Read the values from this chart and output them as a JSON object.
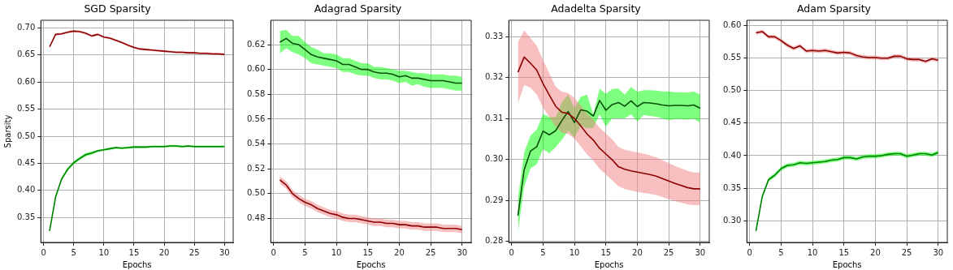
{
  "chart_data": [
    {
      "type": "line",
      "title": "SGD Sparsity",
      "xlabel": "Epochs",
      "ylabel": "Sparsity",
      "x": [
        1,
        2,
        3,
        4,
        5,
        6,
        7,
        8,
        9,
        10,
        11,
        12,
        13,
        14,
        15,
        16,
        17,
        18,
        19,
        20,
        21,
        22,
        23,
        24,
        25,
        26,
        27,
        28,
        29,
        30
      ],
      "xlim": [
        -0.45,
        31.45
      ],
      "xticks": [
        0,
        5,
        10,
        15,
        20,
        25,
        30
      ],
      "ylim": [
        0.304,
        0.714
      ],
      "yticks": [
        {
          "value": 0.35,
          "label": "0.35"
        },
        {
          "value": 0.4,
          "label": "0.40"
        },
        {
          "value": 0.45,
          "label": "0.45"
        },
        {
          "value": 0.5,
          "label": "0.50"
        },
        {
          "value": 0.55,
          "label": "0.55"
        },
        {
          "value": 0.6,
          "label": "0.60"
        },
        {
          "value": 0.65,
          "label": "0.65"
        },
        {
          "value": 0.7,
          "label": "0.70"
        }
      ],
      "grid": true,
      "series": [
        {
          "color": "#8b0000",
          "values": [
            0.665,
            0.688,
            0.689,
            0.692,
            0.694,
            0.693,
            0.69,
            0.685,
            0.688,
            0.683,
            0.681,
            0.677,
            0.673,
            0.668,
            0.664,
            0.661,
            0.66,
            0.659,
            0.658,
            0.657,
            0.656,
            0.655,
            0.655,
            0.654,
            0.654,
            0.653,
            0.653,
            0.652,
            0.652,
            0.651
          ],
          "lower": [
            0.663,
            0.686,
            0.687,
            0.69,
            0.692,
            0.691,
            0.688,
            0.683,
            0.686,
            0.681,
            0.679,
            0.675,
            0.671,
            0.666,
            0.662,
            0.659,
            0.658,
            0.657,
            0.656,
            0.655,
            0.654,
            0.653,
            0.653,
            0.652,
            0.652,
            0.651,
            0.651,
            0.65,
            0.65,
            0.649
          ],
          "upper": [
            0.667,
            0.69,
            0.691,
            0.694,
            0.696,
            0.695,
            0.692,
            0.687,
            0.69,
            0.685,
            0.683,
            0.679,
            0.675,
            0.67,
            0.666,
            0.663,
            0.662,
            0.661,
            0.66,
            0.659,
            0.658,
            0.657,
            0.657,
            0.656,
            0.656,
            0.655,
            0.655,
            0.654,
            0.654,
            0.653
          ]
        },
        {
          "color": "#008000",
          "values": [
            0.325,
            0.388,
            0.421,
            0.439,
            0.451,
            0.459,
            0.466,
            0.469,
            0.473,
            0.475,
            0.477,
            0.479,
            0.478,
            0.479,
            0.48,
            0.48,
            0.48,
            0.481,
            0.481,
            0.481,
            0.482,
            0.482,
            0.481,
            0.482,
            0.481,
            0.481,
            0.481,
            0.481,
            0.481,
            0.481
          ],
          "lower": [
            0.322,
            0.385,
            0.418,
            0.436,
            0.448,
            0.456,
            0.463,
            0.466,
            0.471,
            0.473,
            0.475,
            0.477,
            0.476,
            0.477,
            0.478,
            0.478,
            0.478,
            0.479,
            0.479,
            0.479,
            0.48,
            0.48,
            0.479,
            0.48,
            0.479,
            0.479,
            0.479,
            0.479,
            0.479,
            0.479
          ],
          "upper": [
            0.328,
            0.391,
            0.424,
            0.442,
            0.454,
            0.462,
            0.469,
            0.472,
            0.475,
            0.477,
            0.479,
            0.481,
            0.48,
            0.481,
            0.482,
            0.482,
            0.482,
            0.483,
            0.483,
            0.483,
            0.484,
            0.484,
            0.483,
            0.484,
            0.483,
            0.483,
            0.483,
            0.483,
            0.483,
            0.483
          ]
        }
      ]
    },
    {
      "type": "line",
      "title": "Adagrad Sparsity",
      "xlabel": "Epochs",
      "x": [
        1,
        2,
        3,
        4,
        5,
        6,
        7,
        8,
        9,
        10,
        11,
        12,
        13,
        14,
        15,
        16,
        17,
        18,
        19,
        20,
        21,
        22,
        23,
        24,
        25,
        26,
        27,
        28,
        29,
        30
      ],
      "xlim": [
        -0.45,
        31.45
      ],
      "xticks": [
        0,
        5,
        10,
        15,
        20,
        25,
        30
      ],
      "ylim": [
        0.4607,
        0.6396
      ],
      "yticks": [
        {
          "value": 0.48,
          "label": "0.48"
        },
        {
          "value": 0.5,
          "label": "0.50"
        },
        {
          "value": 0.52,
          "label": "0.52"
        },
        {
          "value": 0.54,
          "label": "0.54"
        },
        {
          "value": 0.56,
          "label": "0.56"
        },
        {
          "value": 0.58,
          "label": "0.58"
        },
        {
          "value": 0.6,
          "label": "0.60"
        },
        {
          "value": 0.62,
          "label": "0.62"
        }
      ],
      "grid": true,
      "series": [
        {
          "color": "#8b0000",
          "values": [
            0.511,
            0.507,
            0.5,
            0.496,
            0.493,
            0.491,
            0.488,
            0.486,
            0.484,
            0.483,
            0.481,
            0.48,
            0.48,
            0.479,
            0.478,
            0.477,
            0.477,
            0.476,
            0.476,
            0.475,
            0.475,
            0.474,
            0.474,
            0.473,
            0.473,
            0.473,
            0.472,
            0.472,
            0.472,
            0.471
          ],
          "lower": [
            0.508,
            0.504,
            0.497,
            0.493,
            0.49,
            0.488,
            0.485,
            0.483,
            0.481,
            0.48,
            0.478,
            0.477,
            0.477,
            0.476,
            0.475,
            0.474,
            0.474,
            0.473,
            0.473,
            0.472,
            0.472,
            0.471,
            0.471,
            0.47,
            0.47,
            0.47,
            0.469,
            0.469,
            0.469,
            0.468
          ],
          "upper": [
            0.514,
            0.51,
            0.503,
            0.499,
            0.496,
            0.494,
            0.491,
            0.489,
            0.487,
            0.486,
            0.484,
            0.483,
            0.483,
            0.482,
            0.481,
            0.48,
            0.48,
            0.479,
            0.479,
            0.478,
            0.478,
            0.477,
            0.477,
            0.476,
            0.476,
            0.476,
            0.475,
            0.475,
            0.475,
            0.474
          ]
        },
        {
          "color": "#0a500a",
          "values": [
            0.622,
            0.625,
            0.621,
            0.62,
            0.616,
            0.612,
            0.61,
            0.609,
            0.608,
            0.607,
            0.604,
            0.604,
            0.602,
            0.6,
            0.6,
            0.598,
            0.597,
            0.597,
            0.596,
            0.594,
            0.595,
            0.593,
            0.593,
            0.592,
            0.591,
            0.591,
            0.591,
            0.59,
            0.589,
            0.589
          ],
          "lower": [
            0.613,
            0.617,
            0.614,
            0.612,
            0.609,
            0.605,
            0.604,
            0.603,
            0.602,
            0.601,
            0.598,
            0.598,
            0.596,
            0.595,
            0.595,
            0.593,
            0.592,
            0.592,
            0.591,
            0.589,
            0.59,
            0.587,
            0.588,
            0.586,
            0.585,
            0.585,
            0.585,
            0.584,
            0.583,
            0.583
          ],
          "upper": [
            0.631,
            0.632,
            0.627,
            0.627,
            0.622,
            0.618,
            0.616,
            0.613,
            0.613,
            0.612,
            0.609,
            0.609,
            0.607,
            0.605,
            0.605,
            0.602,
            0.602,
            0.601,
            0.6,
            0.599,
            0.599,
            0.598,
            0.597,
            0.597,
            0.596,
            0.596,
            0.596,
            0.595,
            0.595,
            0.594
          ]
        }
      ]
    },
    {
      "type": "line",
      "title": "Adadelta Sparsity",
      "xlabel": "Epochs",
      "x": [
        1,
        2,
        3,
        4,
        5,
        6,
        7,
        8,
        9,
        10,
        11,
        12,
        13,
        14,
        15,
        16,
        17,
        18,
        19,
        20,
        21,
        22,
        23,
        24,
        25,
        26,
        27,
        28,
        29,
        30
      ],
      "xlim": [
        -0.45,
        31.45
      ],
      "xticks": [
        0,
        5,
        10,
        15,
        20,
        25,
        30
      ],
      "ylim": [
        0.2797,
        0.334
      ],
      "yticks": [
        {
          "value": 0.28,
          "label": "0.28"
        },
        {
          "value": 0.29,
          "label": "0.29"
        },
        {
          "value": 0.3,
          "label": "0.30"
        },
        {
          "value": 0.31,
          "label": "0.31"
        },
        {
          "value": 0.32,
          "label": "0.32"
        },
        {
          "value": 0.33,
          "label": "0.33"
        }
      ],
      "grid": true,
      "series": [
        {
          "color": "#8b0000",
          "values": [
            0.3213,
            0.325,
            0.3235,
            0.3218,
            0.3185,
            0.3157,
            0.313,
            0.3115,
            0.3112,
            0.31,
            0.3082,
            0.3062,
            0.3047,
            0.3027,
            0.3013,
            0.2999,
            0.2982,
            0.2976,
            0.2972,
            0.2969,
            0.2966,
            0.2963,
            0.2959,
            0.2953,
            0.2947,
            0.2941,
            0.2936,
            0.2931,
            0.2928,
            0.2928
          ],
          "lower": [
            0.3137,
            0.3182,
            0.3175,
            0.3158,
            0.3127,
            0.3103,
            0.308,
            0.3065,
            0.3062,
            0.305,
            0.3032,
            0.3012,
            0.2997,
            0.2977,
            0.2963,
            0.2949,
            0.2934,
            0.2928,
            0.2924,
            0.2921,
            0.2918,
            0.2916,
            0.2913,
            0.2908,
            0.2903,
            0.2898,
            0.2894,
            0.289,
            0.2888,
            0.2888
          ],
          "upper": [
            0.3287,
            0.3315,
            0.3297,
            0.3277,
            0.3243,
            0.321,
            0.3178,
            0.3165,
            0.3162,
            0.315,
            0.3132,
            0.3112,
            0.3097,
            0.3077,
            0.3063,
            0.3049,
            0.303,
            0.3024,
            0.302,
            0.3017,
            0.3014,
            0.301,
            0.3005,
            0.2998,
            0.2991,
            0.2984,
            0.2978,
            0.2972,
            0.2968,
            0.2968
          ]
        },
        {
          "color": "#0a500a",
          "values": [
            0.2862,
            0.2975,
            0.302,
            0.3031,
            0.3069,
            0.306,
            0.307,
            0.3095,
            0.3117,
            0.309,
            0.3121,
            0.3118,
            0.3106,
            0.3144,
            0.312,
            0.3134,
            0.3139,
            0.313,
            0.3143,
            0.3129,
            0.3139,
            0.3138,
            0.3136,
            0.3133,
            0.3131,
            0.3132,
            0.3132,
            0.3131,
            0.3133,
            0.3125
          ],
          "lower": [
            0.2822,
            0.2933,
            0.2978,
            0.2988,
            0.3025,
            0.3015,
            0.303,
            0.3048,
            0.307,
            0.3053,
            0.3083,
            0.3076,
            0.3077,
            0.311,
            0.308,
            0.31,
            0.31,
            0.31,
            0.311,
            0.3093,
            0.3108,
            0.3106,
            0.3104,
            0.31,
            0.3096,
            0.3098,
            0.3098,
            0.3097,
            0.3099,
            0.309
          ],
          "upper": [
            0.2905,
            0.3017,
            0.3058,
            0.3073,
            0.3111,
            0.3103,
            0.3103,
            0.314,
            0.3158,
            0.3125,
            0.3153,
            0.3158,
            0.311,
            0.3173,
            0.316,
            0.3172,
            0.3173,
            0.3158,
            0.3177,
            0.3165,
            0.3169,
            0.3169,
            0.3168,
            0.3166,
            0.3166,
            0.3164,
            0.3164,
            0.3163,
            0.3166,
            0.3158
          ]
        }
      ]
    },
    {
      "type": "line",
      "title": "Adam Sparsity",
      "xlabel": "Epochs",
      "x": [
        1,
        2,
        3,
        4,
        5,
        6,
        7,
        8,
        9,
        10,
        11,
        12,
        13,
        14,
        15,
        16,
        17,
        18,
        19,
        20,
        21,
        22,
        23,
        24,
        25,
        26,
        27,
        28,
        29,
        30
      ],
      "xlim": [
        -0.45,
        31.45
      ],
      "xticks": [
        0,
        5,
        10,
        15,
        20,
        25,
        30
      ],
      "ylim": [
        0.2664,
        0.6084
      ],
      "yticks": [
        {
          "value": 0.3,
          "label": "0.30"
        },
        {
          "value": 0.35,
          "label": "0.35"
        },
        {
          "value": 0.4,
          "label": "0.40"
        },
        {
          "value": 0.45,
          "label": "0.45"
        },
        {
          "value": 0.5,
          "label": "0.50"
        },
        {
          "value": 0.55,
          "label": "0.55"
        },
        {
          "value": 0.6,
          "label": "0.60"
        }
      ],
      "grid": true,
      "series": [
        {
          "color": "#8b0000",
          "values": [
            0.589,
            0.591,
            0.583,
            0.583,
            0.577,
            0.57,
            0.565,
            0.569,
            0.561,
            0.562,
            0.561,
            0.562,
            0.56,
            0.558,
            0.559,
            0.558,
            0.554,
            0.552,
            0.551,
            0.551,
            0.55,
            0.55,
            0.553,
            0.553,
            0.549,
            0.548,
            0.548,
            0.545,
            0.549,
            0.547
          ],
          "lower": [
            0.586,
            0.588,
            0.58,
            0.58,
            0.574,
            0.567,
            0.562,
            0.566,
            0.558,
            0.559,
            0.558,
            0.559,
            0.557,
            0.555,
            0.556,
            0.555,
            0.551,
            0.549,
            0.548,
            0.548,
            0.547,
            0.547,
            0.55,
            0.55,
            0.546,
            0.545,
            0.545,
            0.542,
            0.546,
            0.544
          ],
          "upper": [
            0.592,
            0.594,
            0.586,
            0.586,
            0.58,
            0.573,
            0.568,
            0.572,
            0.564,
            0.565,
            0.564,
            0.565,
            0.563,
            0.561,
            0.562,
            0.561,
            0.557,
            0.555,
            0.554,
            0.554,
            0.553,
            0.553,
            0.556,
            0.556,
            0.552,
            0.551,
            0.551,
            0.548,
            0.552,
            0.55
          ]
        },
        {
          "color": "#008000",
          "values": [
            0.284,
            0.337,
            0.363,
            0.37,
            0.38,
            0.385,
            0.386,
            0.389,
            0.388,
            0.389,
            0.39,
            0.391,
            0.393,
            0.394,
            0.397,
            0.397,
            0.395,
            0.398,
            0.399,
            0.399,
            0.4,
            0.402,
            0.403,
            0.403,
            0.399,
            0.401,
            0.403,
            0.403,
            0.401,
            0.405
          ],
          "lower": [
            0.281,
            0.334,
            0.36,
            0.367,
            0.377,
            0.382,
            0.383,
            0.386,
            0.385,
            0.386,
            0.387,
            0.388,
            0.39,
            0.391,
            0.394,
            0.394,
            0.392,
            0.395,
            0.396,
            0.396,
            0.397,
            0.399,
            0.4,
            0.4,
            0.396,
            0.398,
            0.4,
            0.4,
            0.398,
            0.402
          ],
          "upper": [
            0.287,
            0.34,
            0.366,
            0.373,
            0.383,
            0.388,
            0.389,
            0.392,
            0.391,
            0.392,
            0.393,
            0.394,
            0.396,
            0.397,
            0.4,
            0.4,
            0.398,
            0.401,
            0.402,
            0.402,
            0.403,
            0.405,
            0.406,
            0.406,
            0.402,
            0.404,
            0.406,
            0.406,
            0.404,
            0.408
          ]
        }
      ]
    }
  ]
}
